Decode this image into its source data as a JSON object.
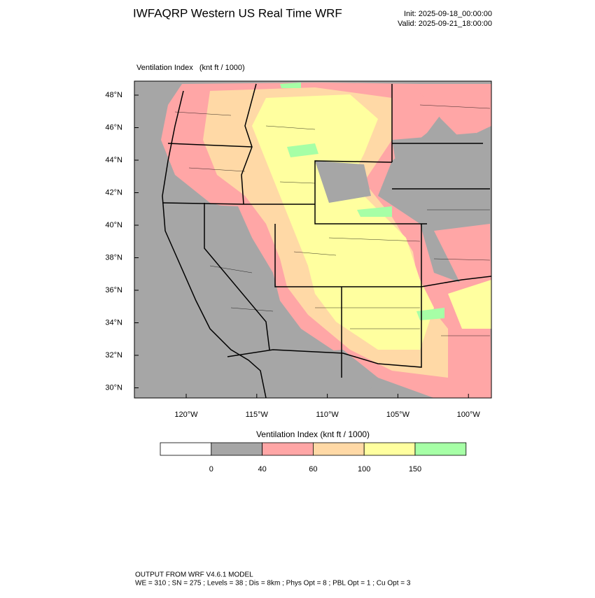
{
  "header": {
    "title": "IWFAQRP Western US Real Time WRF",
    "init": "Init: 2025-09-18_00:00:00",
    "valid": "Valid: 2025-09-21_18:00:00"
  },
  "map": {
    "label": "Ventilation Index   (knt ft / 1000)",
    "lat_labels": [
      "48°N",
      "46°N",
      "44°N",
      "42°N",
      "40°N",
      "38°N",
      "36°N",
      "34°N",
      "32°N",
      "30°N"
    ],
    "lon_labels": [
      "120°W",
      "115°W",
      "110°W",
      "105°W",
      "100°W"
    ]
  },
  "colorbar": {
    "title": "Ventilation Index  (knt ft / 1000)",
    "colors": [
      "#ffffff",
      "#a6a6a6",
      "#ffa6a6",
      "#ffd9a6",
      "#ffff9f",
      "#a6ffa6"
    ],
    "boundaries": [
      "0",
      "40",
      "60",
      "100",
      "150"
    ]
  },
  "footer": {
    "line1": "OUTPUT FROM WRF V4.6.1 MODEL",
    "line2": "WE = 310 ; SN = 275 ; Levels = 38 ; Dis = 8km ; Phys Opt = 8 ; PBL Opt = 1 ; Cu Opt = 3"
  }
}
